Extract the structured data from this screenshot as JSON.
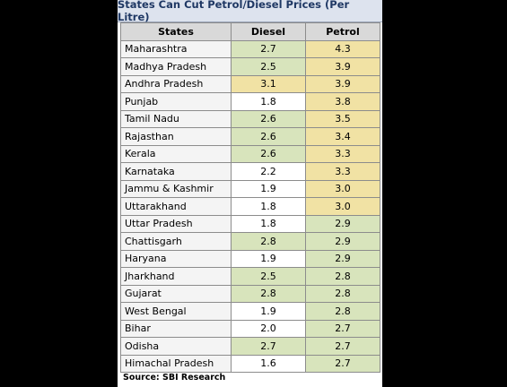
{
  "title": "States Can Cut Petrol/Diesel Prices (Per Litre)",
  "headers": [
    "States",
    "Diesel",
    "Petrol"
  ],
  "colors": {
    "green": "#d8e4bc",
    "yellow": "#f1e2a4",
    "plain": "#ffffff"
  },
  "rows": [
    {
      "state": "Maharashtra",
      "diesel": "2.7",
      "petrol": "4.3",
      "diesel_color": "green",
      "petrol_color": "yellow"
    },
    {
      "state": "Madhya Pradesh",
      "diesel": "2.5",
      "petrol": "3.9",
      "diesel_color": "green",
      "petrol_color": "yellow"
    },
    {
      "state": "Andhra Pradesh",
      "diesel": "3.1",
      "petrol": "3.9",
      "diesel_color": "yellow",
      "petrol_color": "yellow"
    },
    {
      "state": "Punjab",
      "diesel": "1.8",
      "petrol": "3.8",
      "diesel_color": "plain",
      "petrol_color": "yellow"
    },
    {
      "state": "Tamil Nadu",
      "diesel": "2.6",
      "petrol": "3.5",
      "diesel_color": "green",
      "petrol_color": "yellow"
    },
    {
      "state": "Rajasthan",
      "diesel": "2.6",
      "petrol": "3.4",
      "diesel_color": "green",
      "petrol_color": "yellow"
    },
    {
      "state": "Kerala",
      "diesel": "2.6",
      "petrol": "3.3",
      "diesel_color": "green",
      "petrol_color": "yellow"
    },
    {
      "state": "Karnataka",
      "diesel": "2.2",
      "petrol": "3.3",
      "diesel_color": "plain",
      "petrol_color": "yellow"
    },
    {
      "state": "Jammu & Kashmir",
      "diesel": "1.9",
      "petrol": "3.0",
      "diesel_color": "plain",
      "petrol_color": "yellow"
    },
    {
      "state": "Uttarakhand",
      "diesel": "1.8",
      "petrol": "3.0",
      "diesel_color": "plain",
      "petrol_color": "yellow"
    },
    {
      "state": "Uttar Pradesh",
      "diesel": "1.8",
      "petrol": "2.9",
      "diesel_color": "plain",
      "petrol_color": "green"
    },
    {
      "state": "Chattisgarh",
      "diesel": "2.8",
      "petrol": "2.9",
      "diesel_color": "green",
      "petrol_color": "green"
    },
    {
      "state": "Haryana",
      "diesel": "1.9",
      "petrol": "2.9",
      "diesel_color": "plain",
      "petrol_color": "green"
    },
    {
      "state": "Jharkhand",
      "diesel": "2.5",
      "petrol": "2.8",
      "diesel_color": "green",
      "petrol_color": "green"
    },
    {
      "state": "Gujarat",
      "diesel": "2.8",
      "petrol": "2.8",
      "diesel_color": "green",
      "petrol_color": "green"
    },
    {
      "state": "West Bengal",
      "diesel": "1.9",
      "petrol": "2.8",
      "diesel_color": "plain",
      "petrol_color": "green"
    },
    {
      "state": "Bihar",
      "diesel": "2.0",
      "petrol": "2.7",
      "diesel_color": "plain",
      "petrol_color": "green"
    },
    {
      "state": "Odisha",
      "diesel": "2.7",
      "petrol": "2.7",
      "diesel_color": "green",
      "petrol_color": "green"
    },
    {
      "state": "Himachal Pradesh",
      "diesel": "1.6",
      "petrol": "2.7",
      "diesel_color": "plain",
      "petrol_color": "green"
    }
  ],
  "source": "Source: SBI Research"
}
